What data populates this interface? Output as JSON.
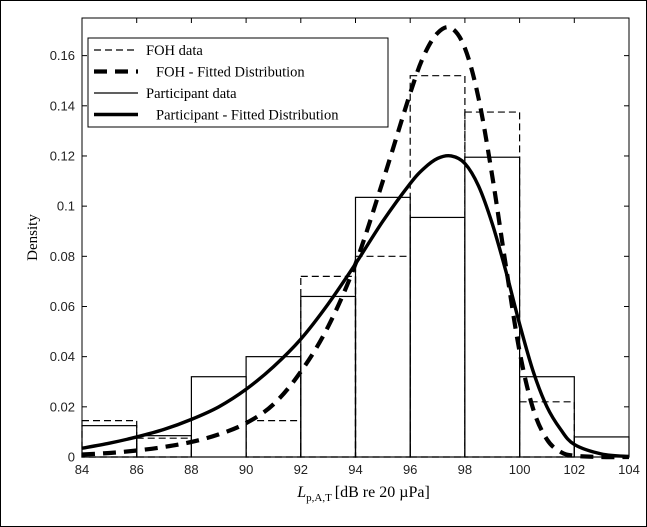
{
  "chart_data": {
    "type": "histogram",
    "title": "",
    "xlabel": {
      "main": "L",
      "subscript": "p,A,T",
      "rest": "[dB re 20 µPa]"
    },
    "ylabel": "Density",
    "xlim": [
      84,
      104
    ],
    "ylim": [
      0,
      0.175
    ],
    "xticks": [
      "84",
      "86",
      "88",
      "90",
      "92",
      "94",
      "96",
      "98",
      "100",
      "102",
      "104"
    ],
    "yticks": [
      "0",
      "0.02",
      "0.04",
      "0.06",
      "0.08",
      "0.1",
      "0.12",
      "0.14",
      "0.16"
    ],
    "grid": false,
    "legend_position": "top-left",
    "series": [
      {
        "name": "FOH data",
        "kind": "histogram",
        "style": "dashed-thin",
        "bin_edges": [
          84,
          86,
          88,
          90,
          92,
          94,
          96,
          98,
          100,
          102,
          104
        ],
        "values": [
          0.0145,
          0.0075,
          0.0,
          0.0145,
          0.072,
          0.08,
          0.152,
          0.1375,
          0.022,
          0.0
        ]
      },
      {
        "name": "FOH - Fitted Distribution",
        "kind": "curve",
        "style": "dashed-thick",
        "x": [
          84,
          85,
          86,
          87,
          88,
          89,
          90,
          91,
          92,
          93,
          94,
          95,
          96,
          96.5,
          97,
          97.5,
          98,
          98.5,
          99,
          99.5,
          100,
          100.5,
          101,
          101.5,
          102,
          103,
          104
        ],
        "y": [
          0.001,
          0.0016,
          0.0026,
          0.004,
          0.006,
          0.009,
          0.0135,
          0.021,
          0.034,
          0.052,
          0.077,
          0.11,
          0.145,
          0.16,
          0.169,
          0.171,
          0.163,
          0.143,
          0.112,
          0.076,
          0.042,
          0.019,
          0.007,
          0.002,
          0.0005,
          0.0,
          0.0
        ]
      },
      {
        "name": "Participant data",
        "kind": "histogram",
        "style": "solid-thin",
        "bin_edges": [
          84,
          86,
          88,
          90,
          92,
          94,
          96,
          98,
          100,
          102,
          104
        ],
        "values": [
          0.0125,
          0.0085,
          0.032,
          0.04,
          0.064,
          0.1035,
          0.0955,
          0.1195,
          0.032,
          0.008
        ]
      },
      {
        "name": "Participant - Fitted Distribution",
        "kind": "curve",
        "style": "solid-thick",
        "x": [
          84,
          85,
          86,
          87,
          88,
          89,
          90,
          91,
          92,
          93,
          94,
          95,
          96,
          96.5,
          97,
          97.5,
          98,
          98.5,
          99,
          99.5,
          100,
          100.5,
          101,
          101.5,
          102,
          103,
          104
        ],
        "y": [
          0.0035,
          0.0055,
          0.008,
          0.011,
          0.015,
          0.02,
          0.027,
          0.036,
          0.047,
          0.061,
          0.077,
          0.094,
          0.109,
          0.115,
          0.119,
          0.12,
          0.117,
          0.108,
          0.093,
          0.074,
          0.053,
          0.034,
          0.02,
          0.011,
          0.005,
          0.0012,
          0.0002
        ]
      }
    ]
  }
}
